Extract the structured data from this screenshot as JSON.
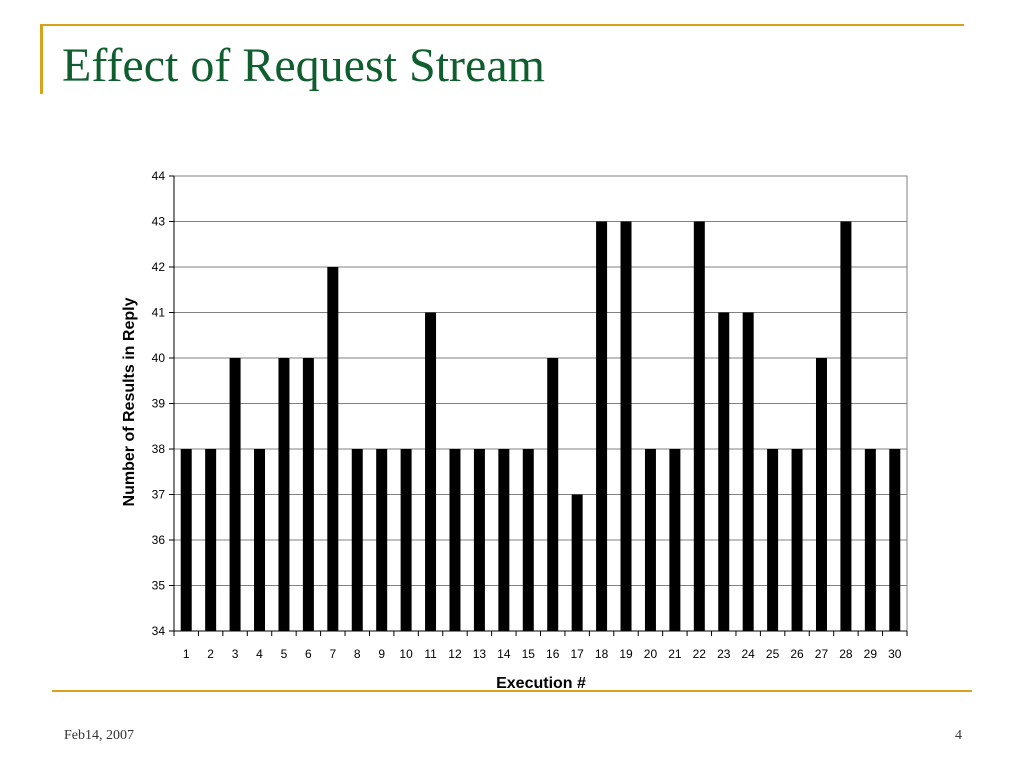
{
  "slide": {
    "title": "Effect of Request Stream",
    "footer_date": "Feb14, 2007",
    "page_number": "4",
    "accent_color": "#d9a21b",
    "title_color": "#0f5e2e"
  },
  "chart_data": {
    "type": "bar",
    "categories": [
      "1",
      "2",
      "3",
      "4",
      "5",
      "6",
      "7",
      "8",
      "9",
      "10",
      "11",
      "12",
      "13",
      "14",
      "15",
      "16",
      "17",
      "18",
      "19",
      "20",
      "21",
      "22",
      "23",
      "24",
      "25",
      "26",
      "27",
      "28",
      "29",
      "30"
    ],
    "values": [
      38,
      38,
      40,
      38,
      40,
      40,
      42,
      38,
      38,
      38,
      41,
      38,
      38,
      38,
      38,
      40,
      37,
      43,
      43,
      38,
      38,
      43,
      41,
      41,
      38,
      38,
      40,
      43,
      38,
      38
    ],
    "xlabel": "Execution #",
    "ylabel": "Number of Results in Reply",
    "ylim": [
      34,
      44
    ],
    "yticks": [
      "34",
      "35",
      "36",
      "37",
      "38",
      "39",
      "40",
      "41",
      "42",
      "43",
      "44"
    ],
    "grid": true,
    "bar_color": "#000000"
  }
}
